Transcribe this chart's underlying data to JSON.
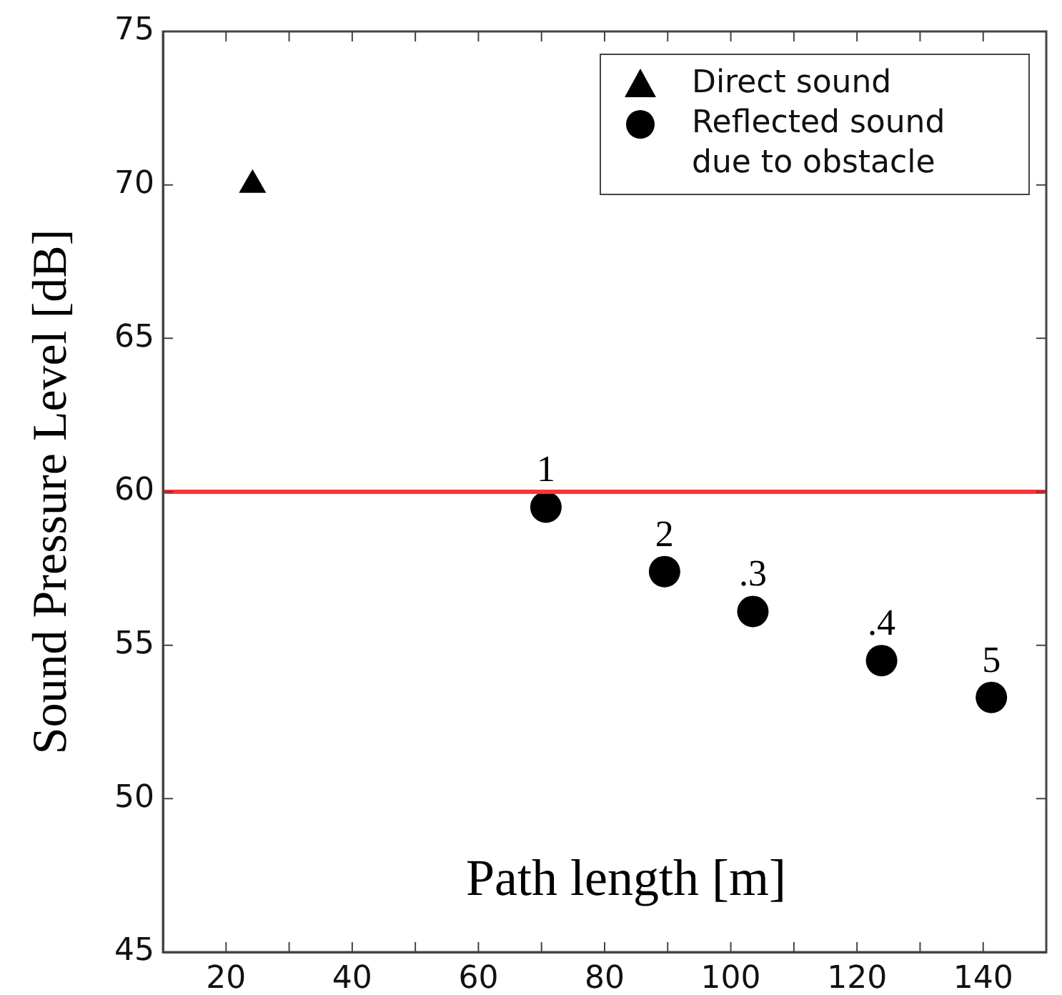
{
  "chart_data": {
    "type": "scatter",
    "xlabel": "Path length [m]",
    "ylabel": "Sound Pressure Level [dB]",
    "xlim": [
      10,
      150
    ],
    "xticks": [
      20,
      {
        "value": 30,
        "label": null
      },
      40,
      {
        "value": 50,
        "label": null
      },
      60,
      {
        "value": 70,
        "label": null
      },
      80,
      {
        "value": 90,
        "label": null
      },
      100,
      {
        "value": 110,
        "label": null
      },
      120,
      {
        "value": 130,
        "label": null
      },
      140
    ],
    "ylim": [
      45,
      75
    ],
    "yticks": [
      45,
      50,
      55,
      60,
      65,
      70,
      75
    ],
    "grid": false,
    "legend": "top right",
    "series": [
      {
        "name": "Direct sound",
        "color": "#000000",
        "marker": "triangle",
        "x": [
          24.2
        ],
        "values": [
          70
        ]
      },
      {
        "name": "Reflected sound due to obstacle",
        "color": "#000000",
        "marker": "circle",
        "x": [
          70.7,
          89.5,
          103.5,
          123.9,
          141.3
        ],
        "values": [
          59.5,
          57.4,
          56.1,
          54.5,
          53.3
        ]
      }
    ],
    "ref_lines": [
      {
        "axis": "y",
        "value": 60,
        "color": "#ff3333"
      }
    ],
    "annotations": [
      {
        "text": "1",
        "x": 70.7,
        "y": 59.5
      },
      {
        "text": "2",
        "x": 89.5,
        "y": 57.4
      },
      {
        "text": ".3",
        "x": 103.5,
        "y": 56.1
      },
      {
        "text": ".4",
        "x": 123.9,
        "y": 54.5
      },
      {
        "text": "5",
        "x": 141.3,
        "y": 53.3
      }
    ]
  }
}
